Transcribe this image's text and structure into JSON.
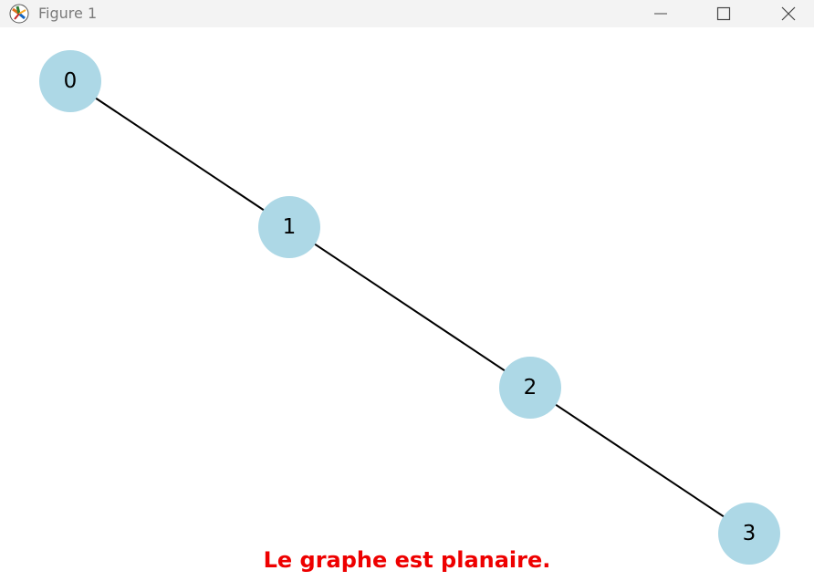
{
  "window": {
    "title": "Figure 1",
    "app_icon": "matplotlib-icon",
    "controls": [
      "minimize-icon",
      "maximize-icon",
      "close-icon"
    ]
  },
  "graph": {
    "nodes": [
      {
        "id": "0",
        "label": "0"
      },
      {
        "id": "1",
        "label": "1"
      },
      {
        "id": "2",
        "label": "2"
      },
      {
        "id": "3",
        "label": "3"
      }
    ],
    "edges": [
      [
        "0",
        "1"
      ],
      [
        "1",
        "2"
      ],
      [
        "2",
        "3"
      ]
    ],
    "node_color": "#add8e6",
    "edge_color": "#000000"
  },
  "caption": {
    "text": "Le graphe est planaire.",
    "color": "#ee0000"
  }
}
